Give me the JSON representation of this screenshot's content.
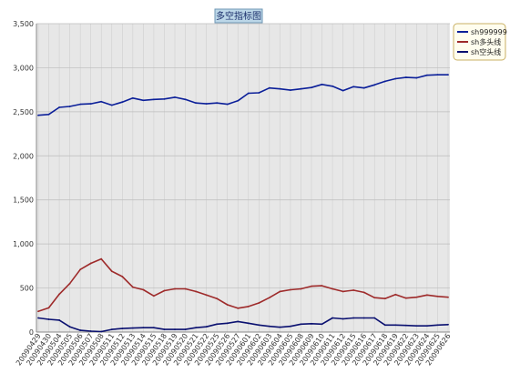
{
  "chart_data": {
    "type": "line",
    "title": "多空指标图",
    "xlabel": "",
    "ylabel": "",
    "ylim": [
      0,
      3500
    ],
    "yticks": [
      0,
      500,
      1000,
      1500,
      2000,
      2500,
      3000,
      3500
    ],
    "ytick_labels": [
      "0",
      "500",
      "1,000",
      "1,500",
      "2,000",
      "2,500",
      "3,000",
      "3,500"
    ],
    "grid": true,
    "legend_position": "top-right",
    "categories": [
      "20090429",
      "20090430",
      "20090504",
      "20090505",
      "20090506",
      "20090507",
      "20090508",
      "20090511",
      "20090512",
      "20090513",
      "20090514",
      "20090515",
      "20090518",
      "20090519",
      "20090520",
      "20090521",
      "20090522",
      "20090525",
      "20090526",
      "20090527",
      "20090601",
      "20090602",
      "20090603",
      "20090604",
      "20090605",
      "20090608",
      "20090609",
      "20090610",
      "20090611",
      "20090612",
      "20090615",
      "20090616",
      "20090617",
      "20090618",
      "20090619",
      "20090622",
      "20090623",
      "20090624",
      "20090625",
      "20090626"
    ],
    "series": [
      {
        "name": "sh999999",
        "color": "#0b1f99",
        "values": [
          2460,
          2470,
          2550,
          2560,
          2585,
          2590,
          2615,
          2575,
          2610,
          2655,
          2630,
          2640,
          2645,
          2665,
          2640,
          2600,
          2590,
          2600,
          2585,
          2625,
          2710,
          2715,
          2770,
          2760,
          2745,
          2760,
          2775,
          2810,
          2790,
          2740,
          2785,
          2770,
          2805,
          2845,
          2875,
          2890,
          2885,
          2915,
          2920,
          2920
        ]
      },
      {
        "name": "sh多头线",
        "color": "#9e2a2a",
        "values": [
          235,
          275,
          430,
          550,
          710,
          780,
          830,
          690,
          630,
          510,
          480,
          410,
          470,
          490,
          490,
          460,
          420,
          380,
          310,
          270,
          290,
          330,
          390,
          460,
          480,
          490,
          520,
          525,
          490,
          460,
          475,
          450,
          390,
          380,
          425,
          385,
          395,
          420,
          405,
          395
        ]
      },
      {
        "name": "sh空头线",
        "color": "#0a1070",
        "values": [
          160,
          145,
          135,
          60,
          20,
          10,
          5,
          30,
          40,
          45,
          50,
          50,
          30,
          30,
          30,
          50,
          60,
          90,
          100,
          120,
          100,
          80,
          65,
          55,
          65,
          90,
          95,
          90,
          160,
          150,
          160,
          160,
          160,
          80,
          80,
          75,
          70,
          70,
          80,
          85
        ]
      }
    ]
  }
}
